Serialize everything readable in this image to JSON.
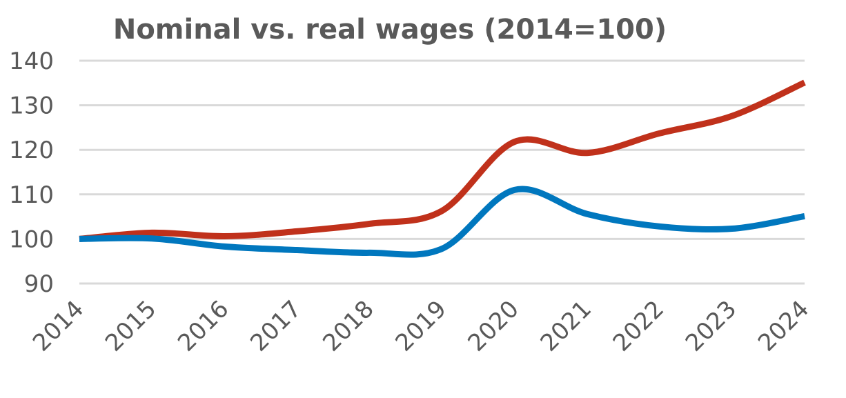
{
  "chart_data": {
    "type": "line",
    "title": "Nominal vs. real  wages (2014=100)",
    "xlabel": "",
    "ylabel": "",
    "categories": [
      "2014",
      "2015",
      "2016",
      "2017",
      "2018",
      "2019",
      "2020",
      "2021",
      "2022",
      "2023",
      "2024"
    ],
    "ylim": [
      90,
      140
    ],
    "yticks": [
      90,
      100,
      110,
      120,
      130,
      140
    ],
    "grid": true,
    "legend": "none",
    "smoothed": true,
    "series": [
      {
        "color": "#C0311B",
        "values": [
          100,
          101.4,
          100.6,
          101.7,
          103.4,
          106.3,
          121.8,
          119.3,
          123.7,
          127.6,
          135.1
        ]
      },
      {
        "color": "#0077BE",
        "values": [
          100,
          100.1,
          98.3,
          97.5,
          96.9,
          97.8,
          111.0,
          105.6,
          102.8,
          102.3,
          105.1
        ]
      }
    ]
  }
}
